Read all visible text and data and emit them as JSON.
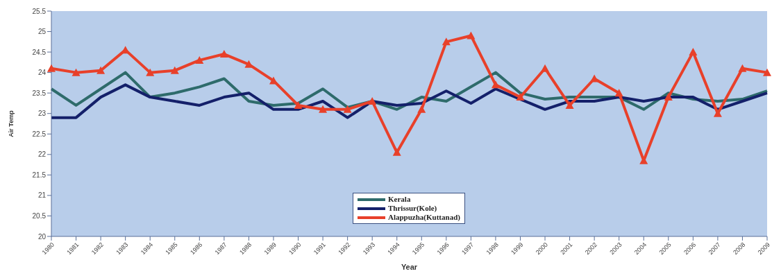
{
  "chart_data": {
    "type": "line",
    "xlabel": "Year",
    "ylabel": "Air Temp",
    "categories": [
      "1980",
      "1981",
      "1982",
      "1983",
      "1984",
      "1985",
      "1986",
      "1987",
      "1988",
      "1989",
      "1990",
      "1991",
      "1992",
      "1993",
      "1994",
      "1995",
      "1996",
      "1997",
      "1998",
      "1999",
      "2000",
      "2001",
      "2002",
      "2003",
      "2004",
      "2005",
      "2006",
      "2007",
      "2008",
      "2009"
    ],
    "series": [
      {
        "name": "Kerala",
        "color": "#2e6b6b",
        "marker": "none",
        "values": [
          23.6,
          23.2,
          23.6,
          24.0,
          23.4,
          23.5,
          23.65,
          23.85,
          23.3,
          23.2,
          23.25,
          23.6,
          23.15,
          23.3,
          23.1,
          23.4,
          23.3,
          23.65,
          24.0,
          23.5,
          23.35,
          23.4,
          23.4,
          23.4,
          23.1,
          23.5,
          23.35,
          23.3,
          23.35,
          23.55
        ]
      },
      {
        "name": "Thrissur(Kole)",
        "color": "#14206a",
        "marker": "none",
        "values": [
          22.9,
          22.9,
          23.4,
          23.7,
          23.4,
          23.3,
          23.2,
          23.4,
          23.5,
          23.1,
          23.1,
          23.3,
          22.9,
          23.3,
          23.2,
          23.25,
          23.55,
          23.25,
          23.6,
          23.35,
          23.1,
          23.3,
          23.3,
          23.4,
          23.3,
          23.4,
          23.4,
          23.1,
          23.3,
          23.5
        ]
      },
      {
        "name": "Alappuzha(Kuttanad)",
        "color": "#e8402a",
        "marker": "triangle",
        "values": [
          24.1,
          24.0,
          24.05,
          24.55,
          24.0,
          24.05,
          24.3,
          24.45,
          24.2,
          23.8,
          23.2,
          23.1,
          23.1,
          23.3,
          22.05,
          23.1,
          24.75,
          24.9,
          23.7,
          23.4,
          24.1,
          23.2,
          23.85,
          23.5,
          21.85,
          23.4,
          24.5,
          23.0,
          24.1,
          24.0
        ]
      }
    ],
    "ylim": [
      20,
      25.5
    ],
    "yticks": [
      20,
      20.5,
      21,
      21.5,
      22,
      22.5,
      23,
      23.5,
      24,
      24.5,
      25,
      25.5
    ],
    "grid": false,
    "legend": "bottom",
    "line_style": "solid"
  }
}
